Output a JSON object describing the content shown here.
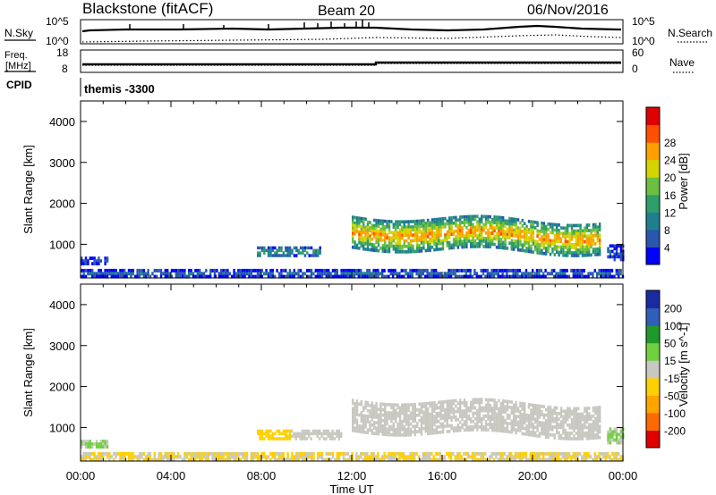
{
  "header": {
    "title": "Blackstone (fitACF)",
    "beam": "Beam 20",
    "date": "06/Nov/2016"
  },
  "strips": {
    "nsky_label": "N.Sky",
    "nsearch_label": "N.Search",
    "nsky_ticks": [
      "10^5",
      "10^0"
    ],
    "nsearch_ticks": [
      "10^5",
      "10^0"
    ],
    "freq_label_top": "Freq.",
    "freq_label_bottom": "[MHz]",
    "freq_ticks": [
      "18",
      "8"
    ],
    "nave_label": "Nave",
    "nave_ticks": [
      "60",
      "0"
    ],
    "cpid_label": "CPID",
    "cpid_value": "themis -3300"
  },
  "colors": {
    "power": [
      "#0000ff",
      "#2a56b0",
      "#1f7f8f",
      "#2e9e6a",
      "#6cbf40",
      "#d4d400",
      "#ffa000",
      "#ff5000",
      "#e00000"
    ],
    "velocity": [
      "#1a2aa0",
      "#2f5fb8",
      "#1f9a2a",
      "#70d040",
      "#c8c8c0",
      "#ffd000",
      "#ffa500",
      "#ff6a00",
      "#e00000"
    ]
  },
  "chart_data": [
    {
      "type": "heatmap",
      "title": "",
      "xlabel": "",
      "ylabel": "Slant Range [km]",
      "xlim": [
        "00:00",
        "24:00"
      ],
      "x_ticks": [
        "00:00",
        "04:00",
        "08:00",
        "12:00",
        "16:00",
        "20:00",
        "00:00"
      ],
      "ylim": [
        180,
        4500
      ],
      "y_ticks": [
        1000,
        2000,
        3000,
        4000
      ],
      "colorbar": {
        "label": "Power [dB]",
        "ticks": [
          "4",
          "8",
          "12",
          "16",
          "20",
          "24",
          "28"
        ],
        "range": [
          0,
          30
        ]
      },
      "features": [
        {
          "feature": "near-range scatter",
          "time_start_h": 0.0,
          "time_end_h": 24.0,
          "range_km": [
            180,
            400
          ],
          "value": 8
        },
        {
          "feature": "early echo band",
          "time_start_h": 0.0,
          "time_end_h": 1.2,
          "range_km": [
            500,
            700
          ],
          "value": 6
        },
        {
          "feature": "morning echo band",
          "time_start_h": 7.8,
          "time_end_h": 10.6,
          "range_km": [
            700,
            950
          ],
          "value": 14
        },
        {
          "feature": "main echo band",
          "time_start_h": 12.0,
          "time_end_h": 23.0,
          "range_km": [
            900,
            1700
          ],
          "value": 24
        },
        {
          "feature": "late echo tail",
          "time_start_h": 23.3,
          "time_end_h": 24.0,
          "range_km": [
            600,
            1000
          ],
          "value": 6
        }
      ]
    },
    {
      "type": "heatmap",
      "title": "",
      "xlabel": "Time UT",
      "ylabel": "Slant Range [km]",
      "xlim": [
        "00:00",
        "24:00"
      ],
      "x_ticks": [
        "00:00",
        "04:00",
        "08:00",
        "12:00",
        "16:00",
        "20:00",
        "00:00"
      ],
      "ylim": [
        180,
        4500
      ],
      "y_ticks": [
        1000,
        2000,
        3000,
        4000
      ],
      "colorbar": {
        "label": "Velocity [m s^-1]",
        "ticks": [
          "200",
          "100",
          "50",
          "15",
          "-15",
          "-50",
          "-100",
          "-200"
        ],
        "range": [
          -250,
          250
        ]
      },
      "features": [
        {
          "feature": "near-range scatter",
          "time_start_h": 0.0,
          "time_end_h": 24.0,
          "range_km": [
            180,
            400
          ],
          "value": -30
        },
        {
          "feature": "early echo band",
          "time_start_h": 0.0,
          "time_end_h": 1.2,
          "range_km": [
            500,
            700
          ],
          "value": 30
        },
        {
          "feature": "morning echo band",
          "time_start_h": 7.8,
          "time_end_h": 9.3,
          "range_km": [
            700,
            950
          ],
          "value": -60
        },
        {
          "feature": "morning echo band",
          "time_start_h": 9.3,
          "time_end_h": 11.5,
          "range_km": [
            700,
            950
          ],
          "value": 0
        },
        {
          "feature": "main echo band",
          "time_start_h": 12.0,
          "time_end_h": 23.0,
          "range_km": [
            900,
            1700
          ],
          "value": 0
        },
        {
          "feature": "late echo tail",
          "time_start_h": 23.3,
          "time_end_h": 24.0,
          "range_km": [
            600,
            1000
          ],
          "value": 30
        }
      ]
    }
  ]
}
